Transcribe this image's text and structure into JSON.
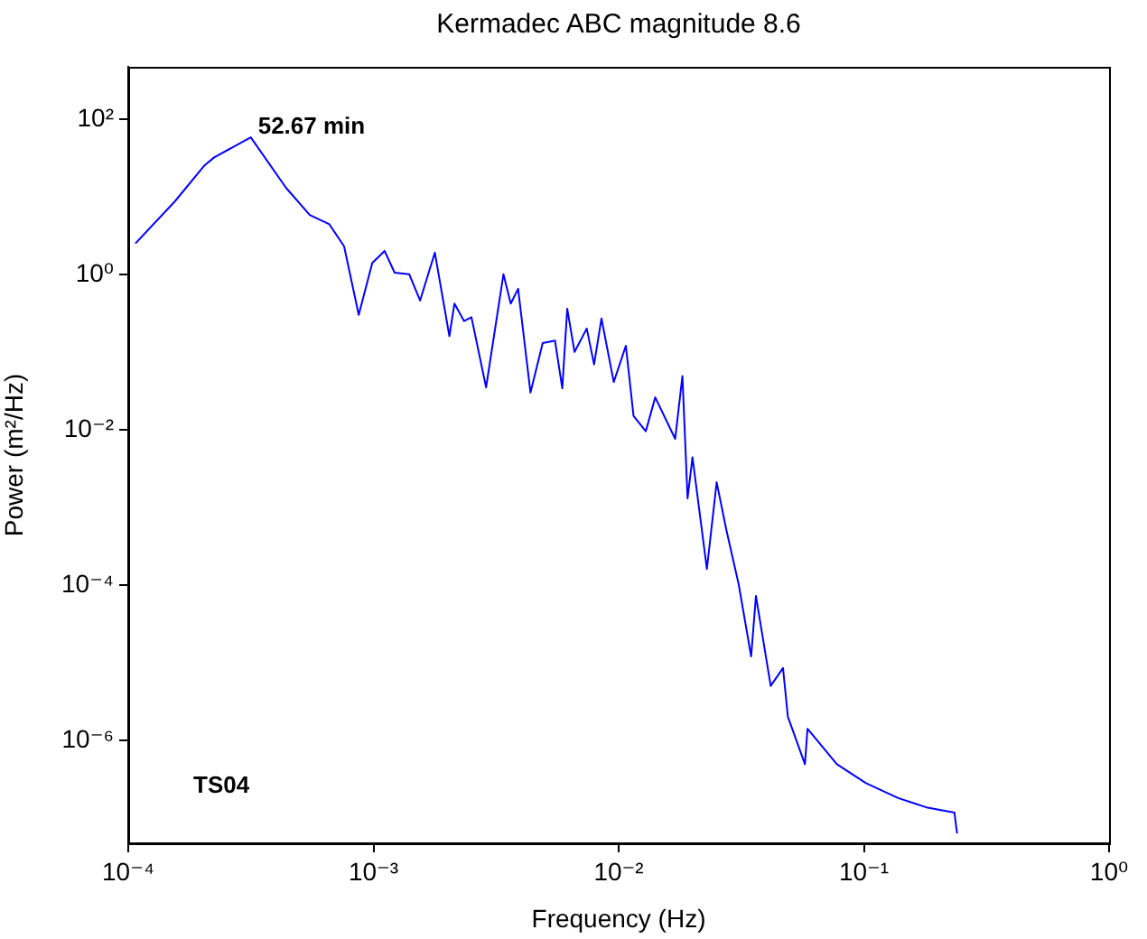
{
  "chart_data": {
    "type": "line",
    "title": "Kermadec ABC magnitude 8.6",
    "xlabel": "Frequency (Hz)",
    "ylabel": "Power (m²/Hz)",
    "log": "xy",
    "grid": false,
    "xlim": [
      0.0001,
      1
    ],
    "ylim": [
      4.7e-08,
      470
    ],
    "xticks": [
      {
        "value": 0.0001,
        "label": "10⁻⁴"
      },
      {
        "value": 0.001,
        "label": "10⁻³"
      },
      {
        "value": 0.01,
        "label": "10⁻²"
      },
      {
        "value": 0.1,
        "label": "10⁻¹"
      },
      {
        "value": 1,
        "label": "10⁰"
      }
    ],
    "yticks": [
      {
        "value": 1e-06,
        "label": "10⁻⁶"
      },
      {
        "value": 0.0001,
        "label": "10⁻⁴"
      },
      {
        "value": 0.01,
        "label": "10⁻²"
      },
      {
        "value": 1,
        "label": "10⁰"
      },
      {
        "value": 100,
        "label": "10²"
      }
    ],
    "x": [
      0.000107,
      0.000155,
      0.000204,
      0.000224,
      0.000316,
      0.00044,
      0.00055,
      0.000661,
      0.000759,
      0.000871,
      0.000989,
      0.00111,
      0.00122,
      0.0014,
      0.00155,
      0.00178,
      0.00204,
      0.00214,
      0.00234,
      0.00251,
      0.00288,
      0.00339,
      0.00363,
      0.00389,
      0.00437,
      0.0049,
      0.0055,
      0.00589,
      0.00617,
      0.00661,
      0.00741,
      0.00794,
      0.00851,
      0.00955,
      0.0107,
      0.0115,
      0.0129,
      0.0141,
      0.017,
      0.0182,
      0.0191,
      0.02,
      0.0229,
      0.0251,
      0.0275,
      0.0309,
      0.0347,
      0.0363,
      0.0417,
      0.0468,
      0.049,
      0.0575,
      0.0589,
      0.0776,
      0.102,
      0.138,
      0.182,
      0.234,
      0.24
    ],
    "series": [
      {
        "color": "#0000ff",
        "values": [
          2.5,
          8.7,
          25,
          32,
          58,
          13,
          5.8,
          4.4,
          2.3,
          0.3,
          1.4,
          2.0,
          1.05,
          1.0,
          0.46,
          1.9,
          0.16,
          0.42,
          0.25,
          0.28,
          0.035,
          1.0,
          0.42,
          0.65,
          0.03,
          0.13,
          0.14,
          0.034,
          0.36,
          0.1,
          0.2,
          0.069,
          0.27,
          0.041,
          0.12,
          0.015,
          0.0095,
          0.026,
          0.0076,
          0.049,
          0.0013,
          0.0044,
          0.00016,
          0.0021,
          0.00051,
          0.0001,
          1.2e-05,
          7.2e-05,
          5e-06,
          8.5e-06,
          2e-06,
          4.9e-07,
          1.4e-06,
          4.9e-07,
          2.8e-07,
          1.8e-07,
          1.35e-07,
          1.17e-07,
          6.3e-08
        ]
      }
    ],
    "annotations": [
      {
        "text": "52.67 min",
        "x": 0.000316,
        "y": 58
      },
      "TS04"
    ]
  }
}
